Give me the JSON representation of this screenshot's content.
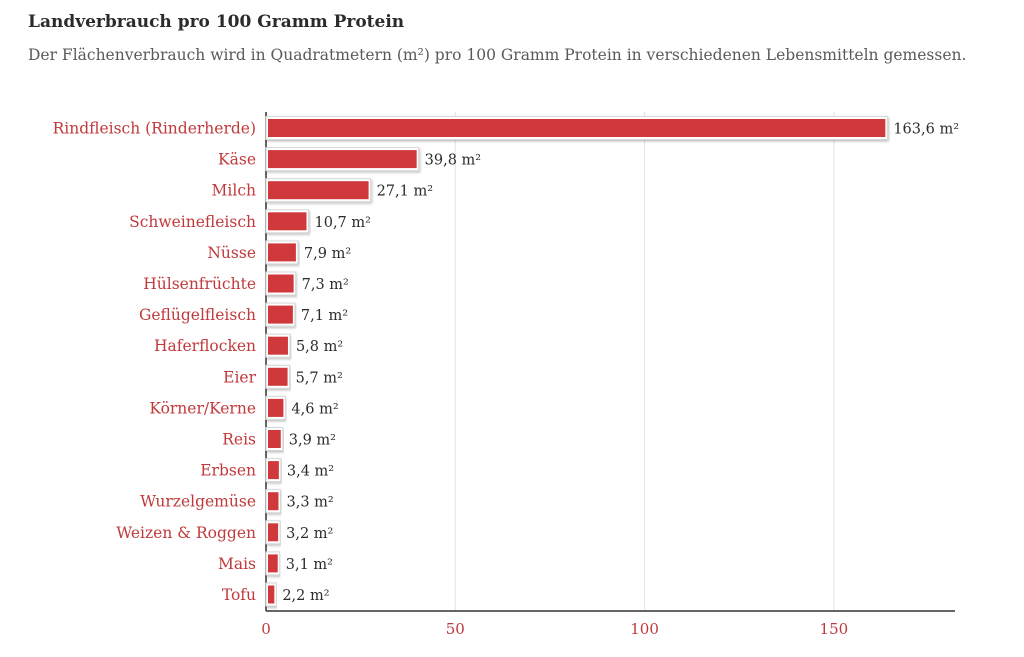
{
  "title": "Landverbrauch pro 100 Gramm Protein",
  "subtitle": "Der Flächenverbrauch wird in Quadratmetern (m²) pro 100 Gramm Protein in verschiedenen Lebensmitteln gemessen.",
  "colors": {
    "bar": "#d0393b",
    "label": "#c0393b",
    "text": "#2b2b2b",
    "grid": "#e3e3e3"
  },
  "chart_data": {
    "type": "bar",
    "orientation": "horizontal",
    "categories": [
      "Rindfleisch (Rinderherde)",
      "Käse",
      "Milch",
      "Schweinefleisch",
      "Nüsse",
      "Hülsenfrüchte",
      "Geflügelfleisch",
      "Haferflocken",
      "Eier",
      "Körner/Kerne",
      "Reis",
      "Erbsen",
      "Wurzelgemüse",
      "Weizen & Roggen",
      "Mais",
      "Tofu"
    ],
    "values": [
      163.6,
      39.8,
      27.1,
      10.7,
      7.9,
      7.3,
      7.1,
      5.8,
      5.7,
      4.6,
      3.9,
      3.4,
      3.3,
      3.2,
      3.1,
      2.2
    ],
    "value_labels": [
      "163,6 m²",
      "39,8 m²",
      "27,1 m²",
      "10,7 m²",
      "7,9 m²",
      "7,3 m²",
      "7,1 m²",
      "5,8 m²",
      "5,7 m²",
      "4,6 m²",
      "3,9 m²",
      "3,4 m²",
      "3,3 m²",
      "3,2 m²",
      "3,1 m²",
      "2,2 m²"
    ],
    "x_ticks": [
      0,
      50,
      100,
      150
    ],
    "xlim": [
      0,
      182
    ],
    "grid": true,
    "title": "Landverbrauch pro 100 Gramm Protein",
    "xlabel": "",
    "ylabel": ""
  }
}
